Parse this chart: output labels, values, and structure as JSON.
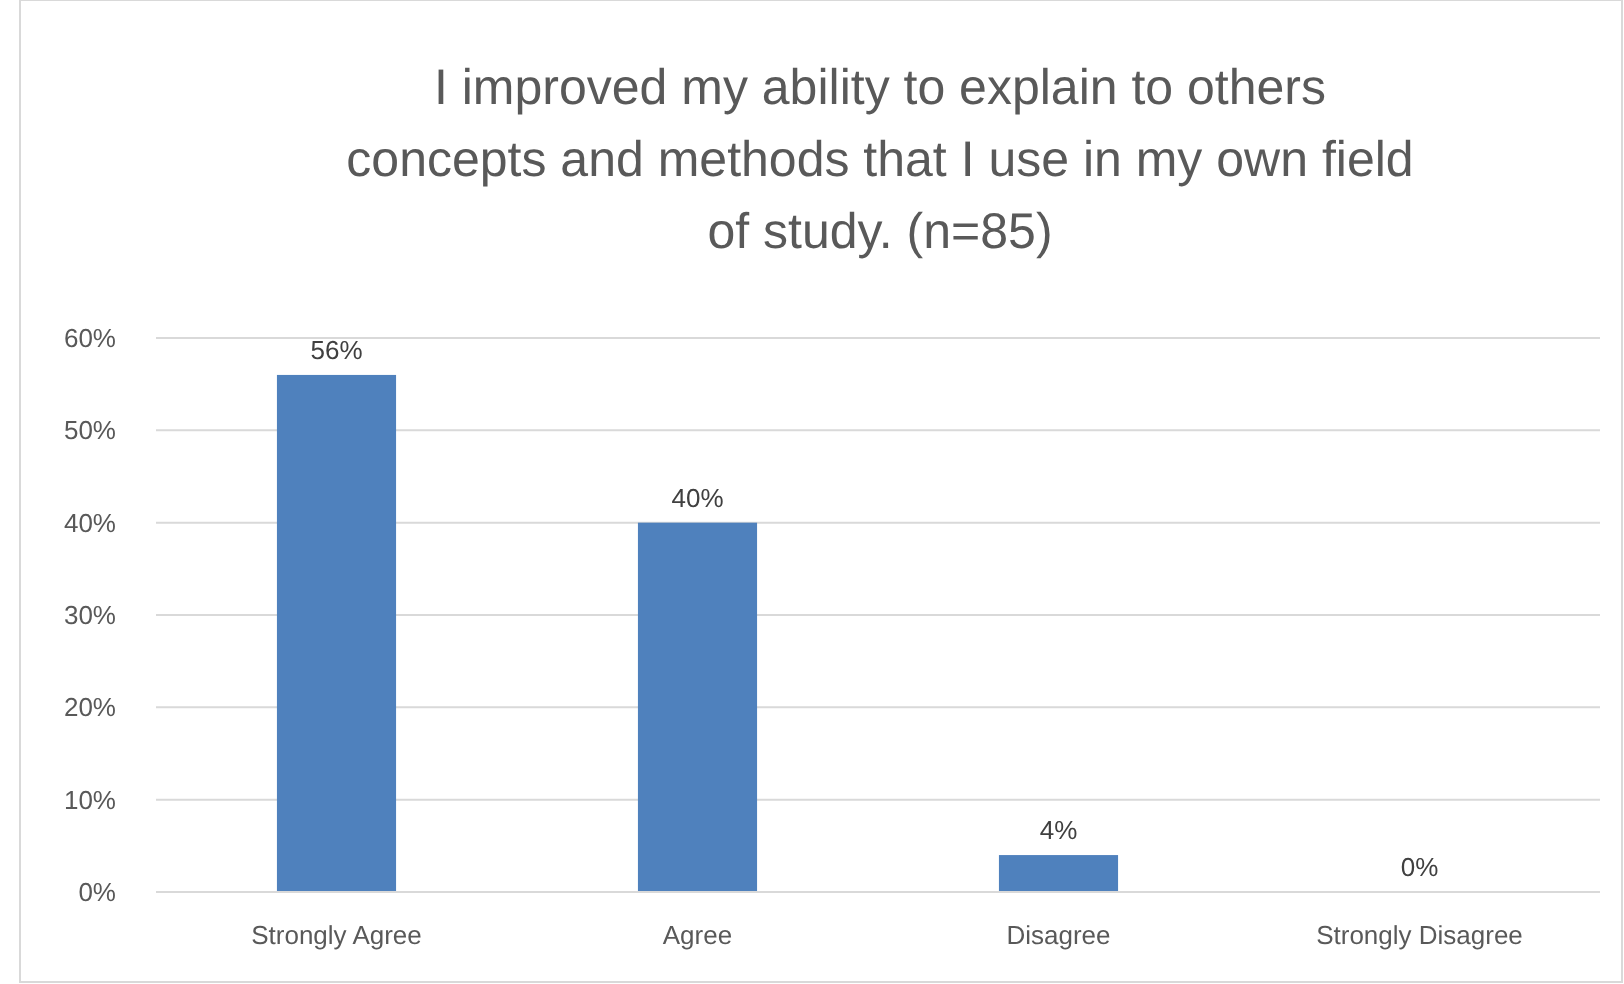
{
  "chart_data": {
    "type": "bar",
    "title": "I improved my ability to explain to others concepts and methods that I use in my own field of study. (n=85)",
    "categories": [
      "Strongly Agree",
      "Agree",
      "Disagree",
      "Strongly Disagree"
    ],
    "values": [
      56,
      40,
      4,
      0
    ],
    "value_labels": [
      "56%",
      "40%",
      "4%",
      "0%"
    ],
    "color": "#4f81bd",
    "ylim": [
      0,
      60
    ],
    "yticks": [
      {
        "value": 0,
        "label": "0%"
      },
      {
        "value": 10,
        "label": "10%"
      },
      {
        "value": 20,
        "label": "20%"
      },
      {
        "value": 30,
        "label": "30%"
      },
      {
        "value": 40,
        "label": "40%"
      },
      {
        "value": 50,
        "label": "50%"
      },
      {
        "value": 60,
        "label": "60%"
      }
    ],
    "grid": "y"
  }
}
